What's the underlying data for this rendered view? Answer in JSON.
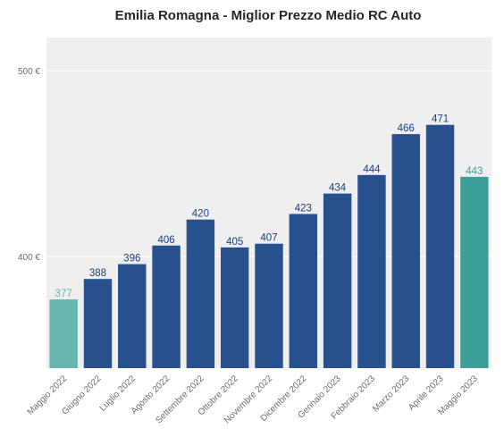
{
  "chart_data": {
    "type": "bar",
    "title": "Emilia Romagna - Miglior Prezzo Medio RC Auto",
    "xlabel": "",
    "ylabel": "",
    "categories": [
      "Maggio 2022",
      "Giugno 2022",
      "Luglio 2022",
      "Agosto 2022",
      "Settembre 2022",
      "Ottobre 2022",
      "Novembre 2022",
      "Dicembre 2022",
      "Gennaio 2023",
      "Febbraio 2023",
      "Marzo 2023",
      "Aprile 2023",
      "Maggio 2023"
    ],
    "values": [
      377,
      388,
      396,
      406,
      420,
      405,
      407,
      423,
      434,
      444,
      466,
      471,
      443
    ],
    "data_labels": [
      "377",
      "388",
      "396",
      "406",
      "420",
      "405",
      "407",
      "423",
      "434",
      "444",
      "466",
      "471",
      "443"
    ],
    "yticks": [
      400,
      500
    ],
    "ytick_labels": [
      "400 €",
      "500 €"
    ],
    "ylim": [
      340,
      518
    ],
    "grid": true,
    "legend": "none",
    "colors": {
      "default": "#27508c",
      "first": "#66b5af",
      "last": "#3d9f99",
      "label_default": "#1a3f80",
      "label_first": "#66b5af",
      "label_last": "#3d9f99",
      "plot_bg": "#efefef",
      "grid": "#ffffff"
    }
  }
}
